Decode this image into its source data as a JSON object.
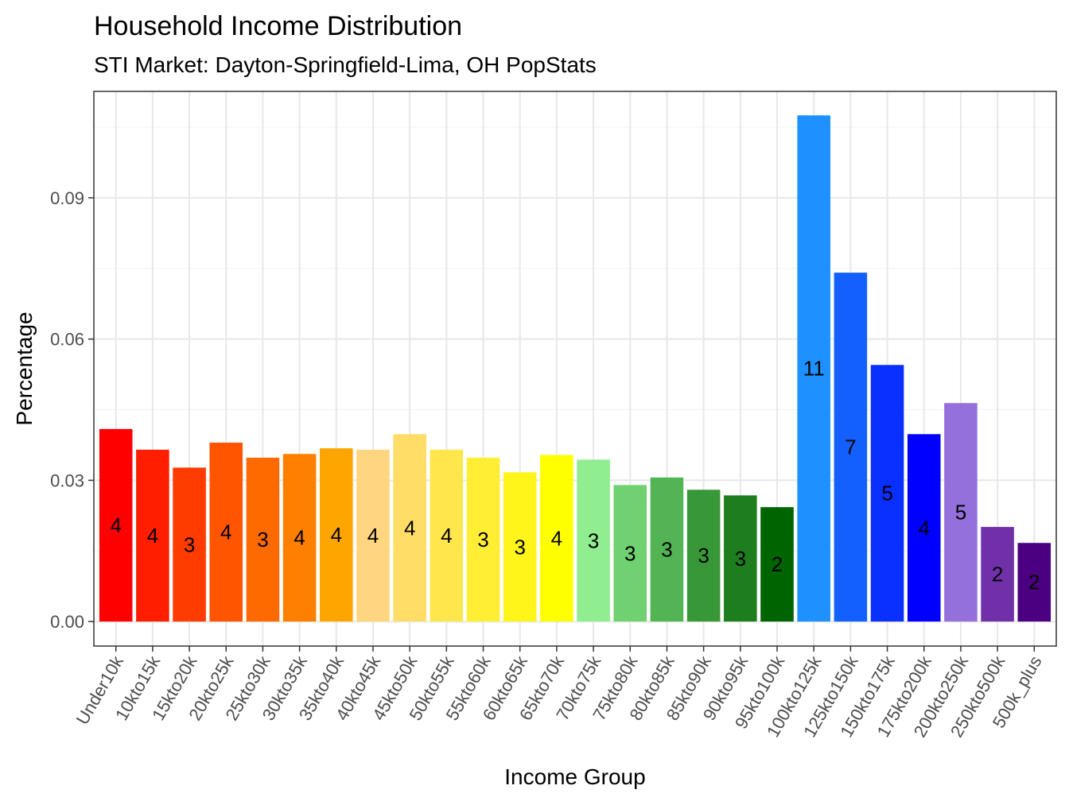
{
  "chart_data": {
    "type": "bar",
    "title": "Household Income Distribution",
    "subtitle": "STI Market: Dayton-Springfield-Lima, OH PopStats",
    "xlabel": "Income Group",
    "ylabel": "Percentage",
    "ylim": [
      -0.0052,
      0.1126
    ],
    "yticks": [
      0.0,
      0.03,
      0.06,
      0.09
    ],
    "ytick_labels": [
      "0.00",
      "0.03",
      "0.06",
      "0.09"
    ],
    "grid": true,
    "legend": "none",
    "categories": [
      "Under10k",
      "10kto15k",
      "15kto20k",
      "20kto25k",
      "25kto30k",
      "30kto35k",
      "35kto40k",
      "40kto45k",
      "45kto50k",
      "50kto55k",
      "55kto60k",
      "60kto65k",
      "65kto70k",
      "70kto75k",
      "75kto80k",
      "80kto85k",
      "85kto90k",
      "90kto95k",
      "95kto100k",
      "100kto125k",
      "125kto150k",
      "150kto175k",
      "175kto200k",
      "200kto250k",
      "250kto500k",
      "500k_plus"
    ],
    "values": [
      0.0409,
      0.0365,
      0.0327,
      0.038,
      0.0348,
      0.0356,
      0.0368,
      0.0365,
      0.0398,
      0.0365,
      0.0348,
      0.0317,
      0.0354,
      0.0344,
      0.029,
      0.0306,
      0.028,
      0.0268,
      0.0243,
      0.1075,
      0.0741,
      0.0545,
      0.0398,
      0.0464,
      0.0201,
      0.0167
    ],
    "data_labels": [
      "4",
      "4",
      "3",
      "4",
      "3",
      "4",
      "4",
      "4",
      "4",
      "4",
      "3",
      "3",
      "4",
      "3",
      "3",
      "3",
      "3",
      "3",
      "2",
      "11",
      "7",
      "5",
      "4",
      "5",
      "2",
      "2"
    ],
    "colors": [
      "#FF0000",
      "#FF1E00",
      "#FF3C00",
      "#FF5500",
      "#FF6A00",
      "#FF8000",
      "#FFA500",
      "#FFD580",
      "#FFDD66",
      "#FFE64D",
      "#FFEE33",
      "#FFF51A",
      "#FFFF00",
      "#90EE90",
      "#6FD16F",
      "#52B452",
      "#389838",
      "#1E7E1E",
      "#006400",
      "#1E90FF",
      "#1460FF",
      "#0A30FF",
      "#0000FF",
      "#9370DB",
      "#7030A8",
      "#4B0082"
    ]
  }
}
